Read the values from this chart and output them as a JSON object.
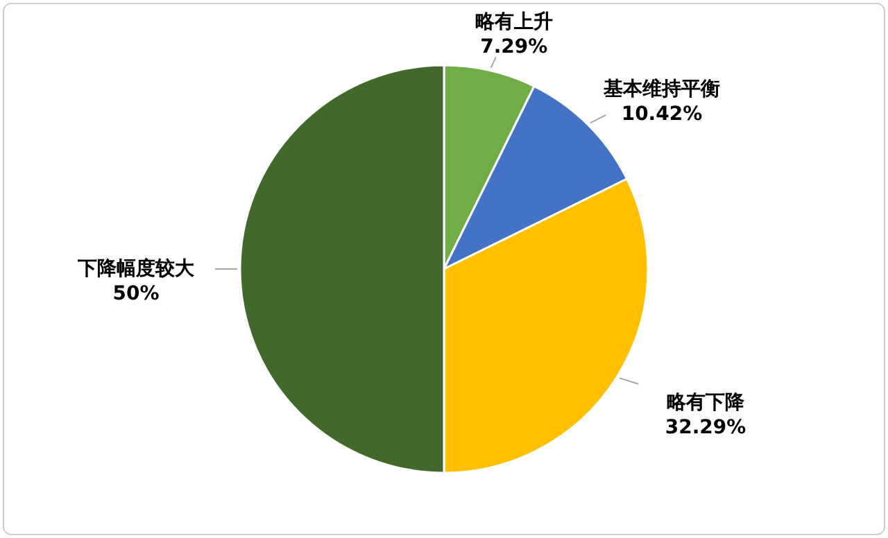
{
  "chart_data": {
    "type": "pie",
    "categories": [
      "略有上升",
      "基本维持平衡",
      "略有下降",
      "下降幅度较大"
    ],
    "values": [
      7.29,
      10.42,
      32.29,
      50
    ],
    "value_labels": [
      "7.29%",
      "10.42%",
      "32.29%",
      "50%"
    ],
    "colors": [
      "#70ad47",
      "#4472c4",
      "#ffc000",
      "#43682b"
    ]
  }
}
